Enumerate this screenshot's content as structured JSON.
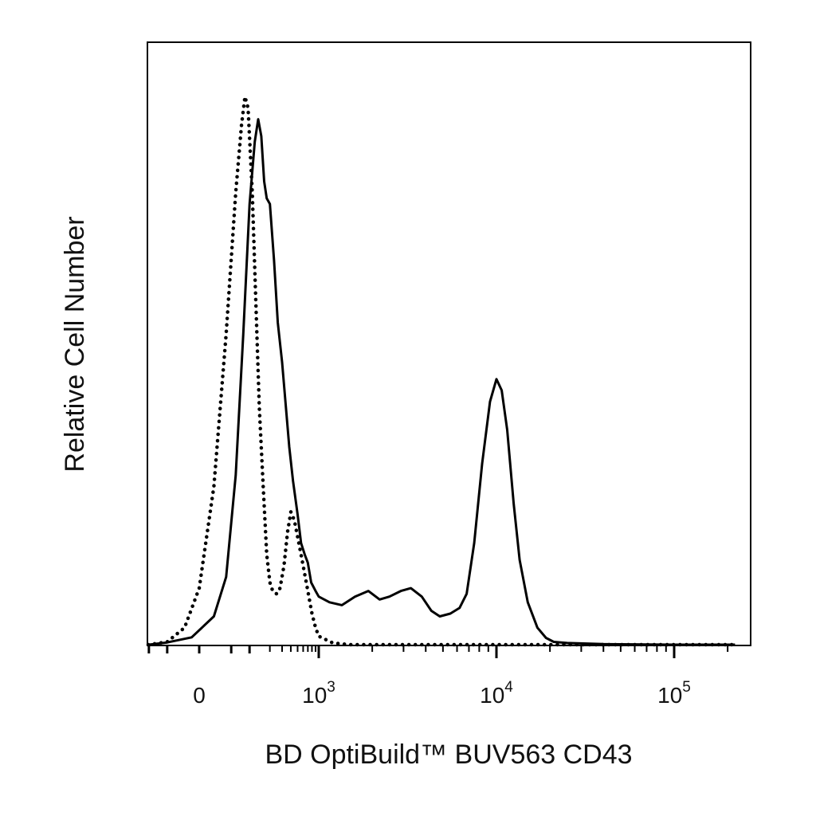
{
  "chart_data": {
    "type": "line",
    "title": "",
    "xlabel": "BD OptiBuild™ BUV563 CD43",
    "ylabel": "Relative Cell Number",
    "x_scale": "biexponential",
    "xlim": [
      -250,
      220000
    ],
    "ylim": [
      0,
      100
    ],
    "grid": false,
    "legend": "none",
    "x_ticks": [
      {
        "value": 0,
        "base": "0",
        "exp": ""
      },
      {
        "value": 1000,
        "base": "10",
        "exp": "3"
      },
      {
        "value": 10000,
        "base": "10",
        "exp": "4"
      },
      {
        "value": 100000,
        "base": "10",
        "exp": "5"
      }
    ],
    "series": [
      {
        "style": "solid",
        "color": "#000000",
        "points": [
          [
            -250,
            0
          ],
          [
            -100,
            0
          ],
          [
            -50,
            0.4
          ],
          [
            -10,
            1.3
          ],
          [
            20,
            5
          ],
          [
            40,
            12
          ],
          [
            60,
            30
          ],
          [
            80,
            55
          ],
          [
            100,
            78
          ],
          [
            120,
            89
          ],
          [
            135,
            93
          ],
          [
            150,
            90
          ],
          [
            165,
            82
          ],
          [
            180,
            79
          ],
          [
            200,
            78
          ],
          [
            230,
            68
          ],
          [
            260,
            57
          ],
          [
            300,
            50
          ],
          [
            340,
            42
          ],
          [
            380,
            35
          ],
          [
            430,
            29
          ],
          [
            500,
            23
          ],
          [
            560,
            18
          ],
          [
            630,
            16
          ],
          [
            700,
            14.5
          ],
          [
            780,
            11
          ],
          [
            900,
            9.5
          ],
          [
            1000,
            8.5
          ],
          [
            1150,
            7.5
          ],
          [
            1350,
            7
          ],
          [
            1600,
            8.5
          ],
          [
            1900,
            9.5
          ],
          [
            2200,
            8
          ],
          [
            2500,
            8.5
          ],
          [
            2900,
            9.5
          ],
          [
            3300,
            10
          ],
          [
            3800,
            8.5
          ],
          [
            4300,
            6
          ],
          [
            4800,
            5
          ],
          [
            5500,
            5.5
          ],
          [
            6200,
            6.5
          ],
          [
            6800,
            9
          ],
          [
            7500,
            18
          ],
          [
            8300,
            32
          ],
          [
            9200,
            43
          ],
          [
            10000,
            47
          ],
          [
            10700,
            45
          ],
          [
            11500,
            38
          ],
          [
            12500,
            25
          ],
          [
            13500,
            15
          ],
          [
            15000,
            7.5
          ],
          [
            17000,
            3
          ],
          [
            19000,
            1.2
          ],
          [
            21000,
            0.5
          ],
          [
            25000,
            0.3
          ],
          [
            40000,
            0.1
          ],
          [
            100000,
            0
          ],
          [
            220000,
            0
          ]
        ]
      },
      {
        "style": "dotted",
        "color": "#000000",
        "points": [
          [
            -250,
            0
          ],
          [
            -100,
            0
          ],
          [
            -50,
            0.5
          ],
          [
            -20,
            3
          ],
          [
            0,
            10
          ],
          [
            20,
            28
          ],
          [
            40,
            55
          ],
          [
            60,
            80
          ],
          [
            75,
            92
          ],
          [
            85,
            97
          ],
          [
            95,
            95
          ],
          [
            110,
            80
          ],
          [
            125,
            60
          ],
          [
            140,
            42
          ],
          [
            160,
            28
          ],
          [
            180,
            16
          ],
          [
            200,
            11
          ],
          [
            220,
            9.5
          ],
          [
            250,
            9
          ],
          [
            280,
            10
          ],
          [
            320,
            14
          ],
          [
            360,
            20
          ],
          [
            400,
            23.5
          ],
          [
            450,
            22
          ],
          [
            520,
            18
          ],
          [
            600,
            14
          ],
          [
            700,
            9.5
          ],
          [
            800,
            5.5
          ],
          [
            900,
            3
          ],
          [
            1000,
            1.5
          ],
          [
            1200,
            0.3
          ],
          [
            1500,
            0
          ],
          [
            220000,
            0
          ]
        ]
      }
    ]
  }
}
